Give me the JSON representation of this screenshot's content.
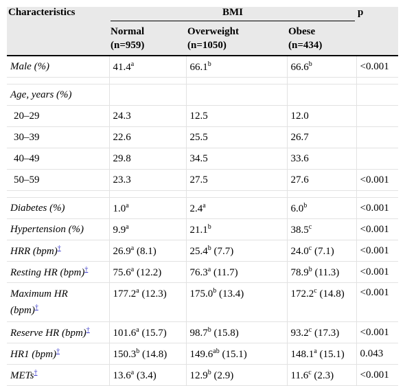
{
  "header": {
    "characteristics": "Characteristics",
    "bmi": "BMI",
    "p": "p",
    "normal": "Normal",
    "normal_n": "(n=959)",
    "overweight": "Overweight",
    "overweight_n": "(n=1050)",
    "obese": "Obese",
    "obese_n": "(n=434)"
  },
  "rows": {
    "male": {
      "label": "Male (%)",
      "normal": "41.4",
      "normal_sup": "a",
      "overweight": "66.1",
      "overweight_sup": "b",
      "obese": "66.6",
      "obese_sup": "b",
      "p": "<0.001"
    },
    "age": {
      "label": "Age, years (%)"
    },
    "age1": {
      "label": "20–29",
      "normal": "24.3",
      "overweight": "12.5",
      "obese": "12.0",
      "p": ""
    },
    "age2": {
      "label": "30–39",
      "normal": "22.6",
      "overweight": "25.5",
      "obese": "26.7",
      "p": ""
    },
    "age3": {
      "label": "40–49",
      "normal": "29.8",
      "overweight": "34.5",
      "obese": "33.6",
      "p": ""
    },
    "age4": {
      "label": "50–59",
      "normal": "23.3",
      "overweight": "27.5",
      "obese": "27.6",
      "p": "<0.001"
    },
    "diabetes": {
      "label": "Diabetes (%)",
      "normal": "1.0",
      "normal_sup": "a",
      "overweight": "2.4",
      "overweight_sup": "a",
      "obese": "6.0",
      "obese_sup": "b",
      "p": "<0.001"
    },
    "hypertension": {
      "label": "Hypertension (%)",
      "normal": "9.9",
      "normal_sup": "a",
      "overweight": "21.1",
      "overweight_sup": "b",
      "obese": "38.5",
      "obese_sup": "c",
      "p": "<0.001"
    },
    "hrr": {
      "label": "HRR (bpm)",
      "dagger": "†",
      "normal": "26.9",
      "normal_sup": "a",
      "normal_sd": " (8.1)",
      "overweight": "25.4",
      "overweight_sup": "b",
      "overweight_sd": " (7.7)",
      "obese": "24.0",
      "obese_sup": "c",
      "obese_sd": " (7.1)",
      "p": "<0.001"
    },
    "resting": {
      "label": "Resting HR (bpm)",
      "dagger": "†",
      "normal": "75.6",
      "normal_sup": "a",
      "normal_sd": " (12.2)",
      "overweight": "76.3",
      "overweight_sup": "a",
      "overweight_sd": " (11.7)",
      "obese": "78.9",
      "obese_sup": "b",
      "obese_sd": " (11.3)",
      "p": "<0.001"
    },
    "maxhr": {
      "label1": "Maximum HR",
      "label2": "(bpm)",
      "dagger": "†",
      "normal": "177.2",
      "normal_sup": "a",
      "normal_sd": " (12.3)",
      "overweight": "175.0",
      "overweight_sup": "b",
      "overweight_sd": " (13.4)",
      "obese": "172.2",
      "obese_sup": "c",
      "obese_sd": " (14.8)",
      "p": "<0.001"
    },
    "reserve": {
      "label": "Reserve HR (bpm)",
      "dagger": "†",
      "normal": "101.6",
      "normal_sup": "a",
      "normal_sd": " (15.7)",
      "overweight": "98.7",
      "overweight_sup": "b",
      "overweight_sd": " (15.8)",
      "obese": "93.2",
      "obese_sup": "c",
      "obese_sd": " (17.3)",
      "p": "<0.001"
    },
    "hr1": {
      "label": "HR1 (bpm)",
      "dagger": "†",
      "normal": "150.3",
      "normal_sup": "b",
      "normal_sd": " (14.8)",
      "overweight": "149.6",
      "overweight_sup": "ab",
      "overweight_sd": " (15.1)",
      "obese": "148.1",
      "obese_sup": "a",
      "obese_sd": " (15.1)",
      "p": "0.043"
    },
    "mets": {
      "label": "METs",
      "dagger": "†",
      "normal": "13.6",
      "normal_sup": "a",
      "normal_sd": " (3.4)",
      "overweight": "12.9",
      "overweight_sup": "b",
      "overweight_sd": " (2.9)",
      "obese": "11.6",
      "obese_sup": "c",
      "obese_sd": " (2.3)",
      "p": "<0.001"
    }
  }
}
